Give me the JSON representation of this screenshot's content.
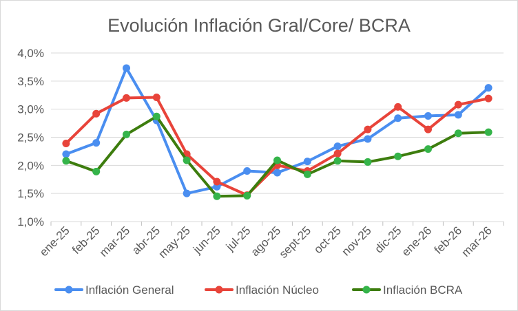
{
  "chart_data": {
    "type": "line",
    "title": "Evolución Inflación Gral/Core/ BCRA",
    "xlabel": "",
    "ylabel": "",
    "categories": [
      "ene-25",
      "feb-25",
      "mar-25",
      "abr-25",
      "may-25",
      "jun-25",
      "jul-25",
      "ago-25",
      "sept-25",
      "oct-25",
      "nov-25",
      "dic-25",
      "ene-26",
      "feb-26",
      "mar-26"
    ],
    "ylim": [
      1.0,
      4.0
    ],
    "yticks": [
      "1,0%",
      "1,5%",
      "2,0%",
      "2,5%",
      "3,0%",
      "3,5%",
      "4,0%"
    ],
    "ytick_values": [
      1.0,
      1.5,
      2.0,
      2.5,
      3.0,
      3.5,
      4.0
    ],
    "grid": true,
    "legend_position": "bottom",
    "series": [
      {
        "name": "Inflación General",
        "color": "#4a8ef0",
        "values": [
          2.2,
          2.4,
          3.73,
          2.8,
          1.5,
          1.62,
          1.9,
          1.87,
          2.07,
          2.34,
          2.47,
          2.84,
          2.88,
          2.9,
          3.38
        ]
      },
      {
        "name": "Inflación Núcleo",
        "color": "#e8443a",
        "values": [
          2.39,
          2.92,
          3.2,
          3.21,
          2.2,
          1.71,
          1.47,
          2.0,
          1.9,
          2.21,
          2.64,
          3.04,
          2.64,
          3.08,
          3.19
        ]
      },
      {
        "name": "Inflación BCRA",
        "color": "#3d7d0e",
        "marker_color": "#35b44a",
        "values": [
          2.08,
          1.89,
          2.55,
          2.87,
          2.09,
          1.45,
          1.46,
          2.09,
          1.84,
          2.08,
          2.06,
          2.16,
          2.29,
          2.57,
          2.59
        ]
      }
    ]
  }
}
